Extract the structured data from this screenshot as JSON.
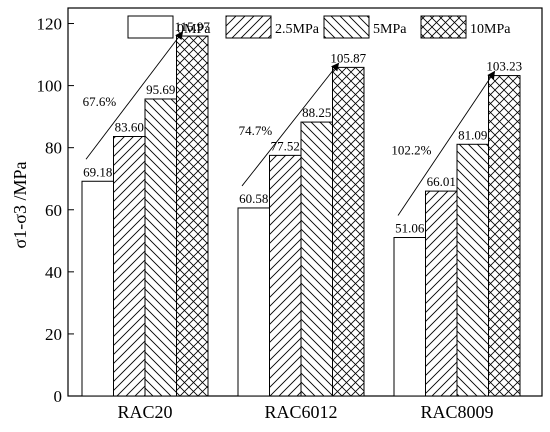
{
  "chart_data": {
    "type": "bar",
    "title": "",
    "xlabel": "",
    "ylabel": "σ1-σ3 /MPa",
    "ylim": [
      0,
      125
    ],
    "yticks": [
      0,
      20,
      40,
      60,
      80,
      100,
      120
    ],
    "categories": [
      "RAC20",
      "RAC6012",
      "RAC8009"
    ],
    "series": [
      {
        "name": "0MPa",
        "values": [
          69.18,
          60.58,
          51.06
        ],
        "pattern": "none"
      },
      {
        "name": "2.5MPa",
        "values": [
          83.6,
          77.52,
          66.01
        ],
        "pattern": "diag-up"
      },
      {
        "name": "5MPa",
        "values": [
          95.69,
          88.25,
          81.09
        ],
        "pattern": "diag-down"
      },
      {
        "name": "10MPa",
        "values": [
          115.97,
          105.87,
          103.23
        ],
        "pattern": "cross"
      }
    ],
    "value_labels": [
      [
        "69.18",
        "83.60",
        "95.69",
        "115.97"
      ],
      [
        "60.58",
        "77.52",
        "88.25",
        "105.87"
      ],
      [
        "51.06",
        "66.01",
        "81.09",
        "103.23"
      ]
    ],
    "increase_labels": [
      "67.6%",
      "74.7%",
      "102.2%"
    ],
    "grid": false,
    "legend": "top"
  }
}
